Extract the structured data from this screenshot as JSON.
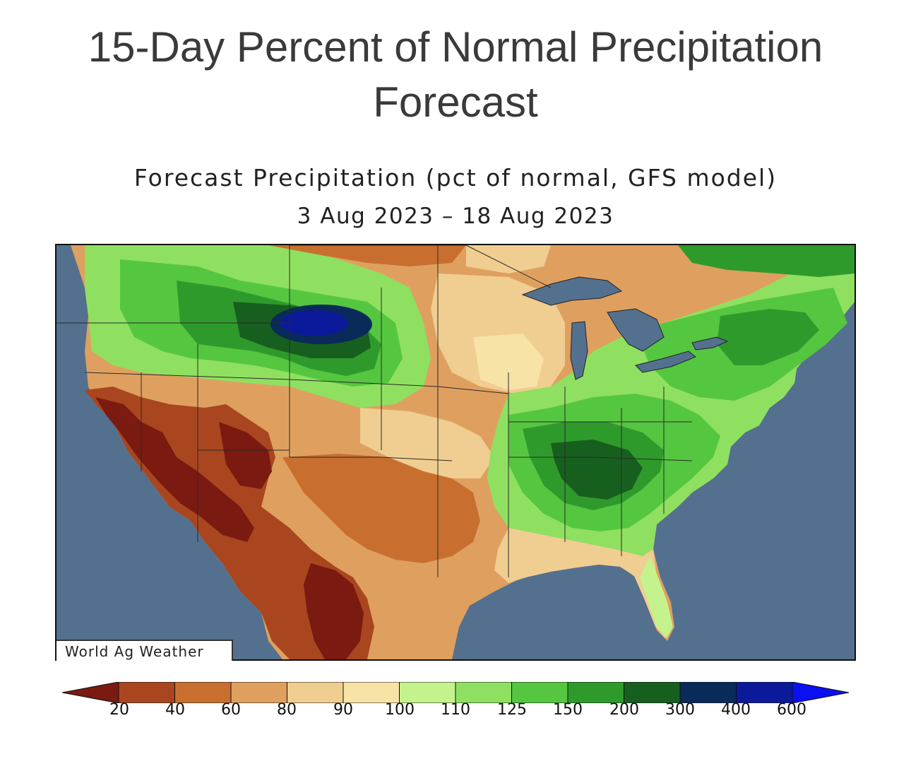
{
  "page": {
    "title_line1": "15-Day Percent of Normal Precipitation",
    "title_line2": "Forecast"
  },
  "map": {
    "title": "Forecast Precipitation (pct of normal, GFS model)",
    "dates": "3 Aug 2023 – 18 Aug 2023",
    "credit": "World Ag Weather",
    "region": "Contiguous United States",
    "ocean_color": "#54708f",
    "lake_color": "#54708f"
  },
  "legend": {
    "labels": [
      "20",
      "40",
      "60",
      "80",
      "90",
      "100",
      "110",
      "125",
      "150",
      "200",
      "300",
      "400",
      "600"
    ],
    "colors": [
      "#7a1a10",
      "#a9461f",
      "#c86f2f",
      "#dfa05f",
      "#f0cd91",
      "#f7e3a6",
      "#c4f28c",
      "#8fe060",
      "#55c640",
      "#2f9a2c",
      "#175f1e",
      "#0a2a5a",
      "#0b1a9a",
      "#0a10f0"
    ]
  }
}
